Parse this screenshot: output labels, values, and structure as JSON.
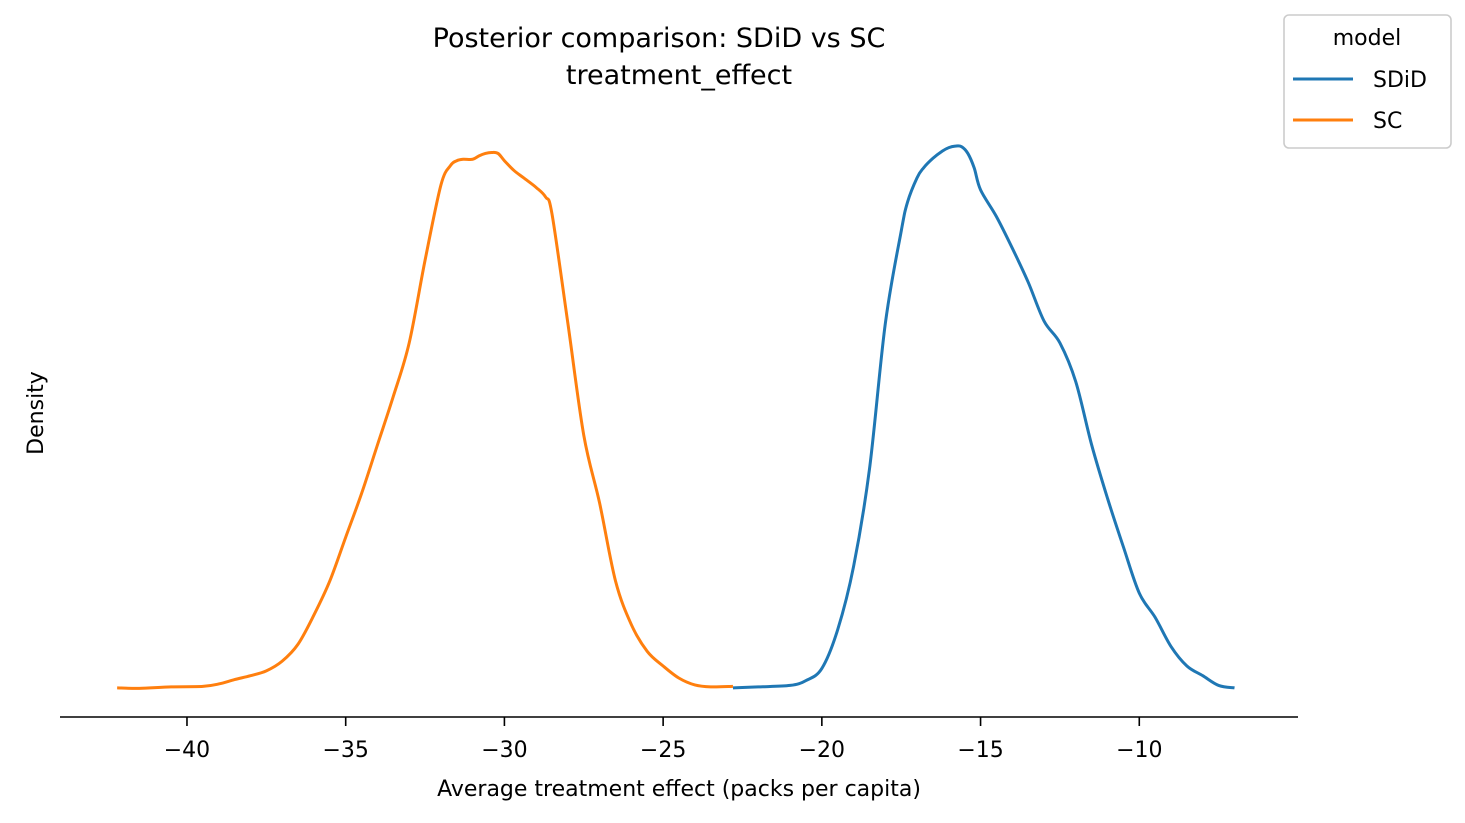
{
  "chart_data": {
    "type": "line",
    "title": "Posterior comparison: SDiD vs SC",
    "subtitle": "treatment_effect",
    "xlabel": "Average treatment effect (packs per capita)",
    "ylabel": "Density",
    "xlim": [
      -44,
      -5
    ],
    "ylim": [
      -0.006,
      0.121
    ],
    "xticks": [
      -40,
      -35,
      -30,
      -25,
      -20,
      -15,
      -10
    ],
    "xtick_labels": [
      "−40",
      "−35",
      "−30",
      "−25",
      "−20",
      "−15",
      "−10"
    ],
    "y_ticks_shown": false,
    "grid": false,
    "legend": {
      "title": "model",
      "placement": "top-right outside"
    },
    "series": [
      {
        "name": "SDiD",
        "color": "#1f77b4",
        "x": [
          -22.8,
          -22.0,
          -21.0,
          -20.5,
          -20.0,
          -19.5,
          -19.0,
          -18.5,
          -18.0,
          -17.5,
          -17.3,
          -17.0,
          -16.8,
          -16.5,
          -16.2,
          -16.0,
          -15.8,
          -15.6,
          -15.4,
          -15.2,
          -15.0,
          -14.5,
          -14.0,
          -13.5,
          -13.0,
          -12.5,
          -12.0,
          -11.5,
          -11.0,
          -10.5,
          -10.0,
          -9.5,
          -9.0,
          -8.5,
          -8.0,
          -7.5,
          -7.0
        ],
        "y": [
          0.0,
          0.0002,
          0.0005,
          0.0015,
          0.004,
          0.012,
          0.025,
          0.045,
          0.075,
          0.094,
          0.1,
          0.105,
          0.107,
          0.109,
          0.1105,
          0.1112,
          0.1115,
          0.1114,
          0.11,
          0.107,
          0.1025,
          0.097,
          0.0905,
          0.0835,
          0.0755,
          0.071,
          0.063,
          0.05,
          0.039,
          0.029,
          0.0195,
          0.0145,
          0.0085,
          0.0045,
          0.0025,
          0.0005,
          0.0
        ]
      },
      {
        "name": "SC",
        "color": "#ff7f0e",
        "x": [
          -42.2,
          -41.5,
          -40.5,
          -39.5,
          -39.0,
          -38.5,
          -38.0,
          -37.5,
          -37.0,
          -36.5,
          -36.0,
          -35.5,
          -35.0,
          -34.5,
          -34.0,
          -33.5,
          -33.0,
          -32.5,
          -32.0,
          -31.7,
          -31.5,
          -31.3,
          -31.0,
          -30.8,
          -30.6,
          -30.4,
          -30.2,
          -30.0,
          -29.7,
          -29.4,
          -29.0,
          -28.7,
          -28.5,
          -28.0,
          -27.5,
          -27.0,
          -26.5,
          -26.0,
          -25.5,
          -25.0,
          -24.5,
          -24.0,
          -23.5,
          -22.8
        ],
        "y": [
          0.0,
          -0.0001,
          0.0002,
          0.0003,
          0.0008,
          0.0017,
          0.0025,
          0.0035,
          0.0055,
          0.009,
          0.015,
          0.022,
          0.031,
          0.04,
          0.05,
          0.06,
          0.071,
          0.088,
          0.1035,
          0.1075,
          0.1085,
          0.1088,
          0.1088,
          0.1095,
          0.11,
          0.1102,
          0.11,
          0.1085,
          0.1065,
          0.105,
          0.103,
          0.101,
          0.0975,
          0.075,
          0.052,
          0.038,
          0.022,
          0.013,
          0.0075,
          0.0045,
          0.002,
          0.0006,
          0.0002,
          0.0003
        ]
      }
    ]
  }
}
